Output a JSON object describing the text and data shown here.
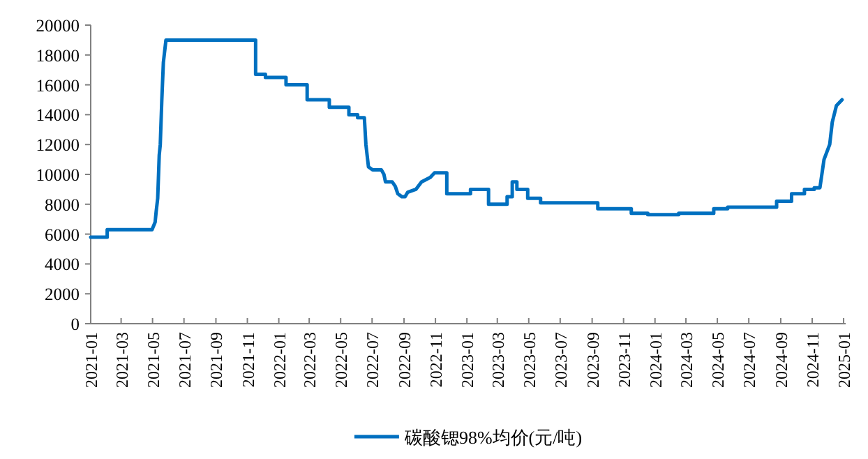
{
  "chart_data": {
    "type": "line",
    "xlim": [
      "2021-01",
      "2025-01-05"
    ],
    "ylim": [
      0,
      20000
    ],
    "yticks": [
      0,
      2000,
      4000,
      6000,
      8000,
      10000,
      12000,
      14000,
      16000,
      18000,
      20000
    ],
    "xticks": [
      "2021-01",
      "2021-03",
      "2021-05",
      "2021-07",
      "2021-09",
      "2021-11",
      "2022-01",
      "2022-03",
      "2022-05",
      "2022-07",
      "2022-09",
      "2022-11",
      "2023-01",
      "2023-03",
      "2023-05",
      "2023-07",
      "2023-09",
      "2023-11",
      "2024-01",
      "2024-03",
      "2024-05",
      "2024-07",
      "2024-09",
      "2024-11",
      "2025-01"
    ],
    "legend": "bottom",
    "grid": false,
    "marker": "none",
    "line_style": "solid",
    "series": [
      {
        "name": "碳酸锶98%均价(元/吨)",
        "color": "#0070c0",
        "x": [
          "2021-01-01",
          "2021-02-02",
          "2021-02-02",
          "2021-04-30",
          "2021-05-06",
          "2021-05-08",
          "2021-05-11",
          "2021-05-14",
          "2021-05-16",
          "2021-05-19",
          "2021-05-22",
          "2021-05-27",
          "2021-11-17",
          "2021-11-17",
          "2021-12-06",
          "2021-12-06",
          "2022-01-15",
          "2022-01-15",
          "2022-02-25",
          "2022-02-25",
          "2022-04-09",
          "2022-04-09",
          "2022-05-17",
          "2022-05-17",
          "2022-06-03",
          "2022-06-03",
          "2022-06-16",
          "2022-06-19",
          "2022-06-24",
          "2022-07-02",
          "2022-07-19",
          "2022-07-24",
          "2022-07-27",
          "2022-08-09",
          "2022-08-15",
          "2022-08-20",
          "2022-08-28",
          "2022-09-03",
          "2022-09-08",
          "2022-09-24",
          "2022-10-05",
          "2022-10-22",
          "2022-10-30",
          "2022-11-23",
          "2022-11-23",
          "2023-01-08",
          "2023-01-08",
          "2023-02-12",
          "2023-02-12",
          "2023-03-20",
          "2023-03-20",
          "2023-03-30",
          "2023-03-30",
          "2023-04-08",
          "2023-04-08",
          "2023-04-29",
          "2023-04-29",
          "2023-05-24",
          "2023-05-24",
          "2023-09-12",
          "2023-09-12",
          "2023-11-16",
          "2023-11-16",
          "2023-12-18",
          "2023-12-18",
          "2024-02-16",
          "2024-02-16",
          "2024-04-24",
          "2024-04-24",
          "2024-05-21",
          "2024-05-21",
          "2024-08-24",
          "2024-08-24",
          "2024-09-22",
          "2024-09-22",
          "2024-10-17",
          "2024-10-17",
          "2024-11-05",
          "2024-11-05",
          "2024-11-16",
          "2024-11-24",
          "2024-12-05",
          "2024-12-10",
          "2024-12-18",
          "2024-12-29"
        ],
        "values": [
          5800,
          5800,
          6300,
          6300,
          6800,
          7500,
          8400,
          11300,
          12000,
          15000,
          17500,
          19000,
          19000,
          16700,
          16700,
          16500,
          16500,
          16000,
          16000,
          15000,
          15000,
          14500,
          14500,
          14000,
          14000,
          13800,
          13800,
          12000,
          10500,
          10300,
          10300,
          10000,
          9500,
          9500,
          9200,
          8700,
          8500,
          8500,
          8800,
          9000,
          9500,
          9800,
          10100,
          10100,
          8700,
          8700,
          9000,
          9000,
          8000,
          8000,
          8500,
          8500,
          9500,
          9500,
          9000,
          9000,
          8400,
          8400,
          8100,
          8100,
          7700,
          7700,
          7400,
          7400,
          7300,
          7300,
          7400,
          7400,
          7700,
          7700,
          7800,
          7800,
          8200,
          8200,
          8700,
          8700,
          9000,
          9000,
          9100,
          9100,
          11000,
          12000,
          13500,
          14600,
          15000
        ]
      }
    ]
  }
}
